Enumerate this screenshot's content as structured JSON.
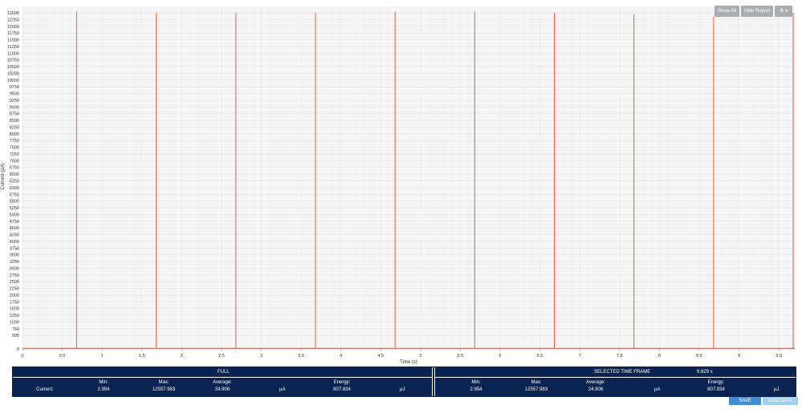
{
  "toolbar": {
    "show_all": "Show All",
    "hide_report": "Hide Report",
    "settings_icon": "gear-icon",
    "dropdown_icon": "caret-down-icon"
  },
  "chart_data": {
    "type": "line",
    "xlabel": "Time (s)",
    "ylabel": "Current (µA)",
    "xlim": [
      0,
      9.7
    ],
    "ylim": [
      0,
      12500
    ],
    "x_ticks": [
      0,
      0.5,
      1,
      1.5,
      2,
      2.5,
      3,
      3.5,
      4,
      4.5,
      5,
      5.5,
      6,
      6.5,
      7,
      7.5,
      8,
      8.5,
      9,
      9.5
    ],
    "y_ticks": [
      0,
      500,
      750,
      1000,
      1250,
      1500,
      1750,
      2000,
      2250,
      2500,
      2750,
      3000,
      3250,
      3500,
      3750,
      4000,
      4250,
      4500,
      4750,
      5000,
      5250,
      5500,
      5750,
      6000,
      6250,
      6500,
      6750,
      7000,
      7250,
      7500,
      7750,
      8000,
      8250,
      8500,
      8750,
      9000,
      9250,
      9500,
      9750,
      10000,
      10250,
      10500,
      10750,
      11000,
      11250,
      11500,
      11750,
      12000,
      12250,
      12500
    ],
    "grid": true,
    "line_color": "#e8603a",
    "baseline": 25,
    "spikes": [
      {
        "x": 0.68,
        "y": 12550
      },
      {
        "x": 1.68,
        "y": 12500
      },
      {
        "x": 2.68,
        "y": 12500
      },
      {
        "x": 3.68,
        "y": 12500
      },
      {
        "x": 4.68,
        "y": 12550
      },
      {
        "x": 5.68,
        "y": 12550
      },
      {
        "x": 6.68,
        "y": 12500
      },
      {
        "x": 7.68,
        "y": 12450
      },
      {
        "x": 8.68,
        "y": 12350
      },
      {
        "x": 9.68,
        "y": 12500
      }
    ]
  },
  "report": {
    "full": {
      "title": "FULL",
      "row_label": "Current:",
      "min_label": "Min:",
      "min": "2.954",
      "max_label": "Max:",
      "max": "12557.983",
      "avg_label": "Average:",
      "avg": "24.906",
      "avg_unit": "µA",
      "energy_label": "Energy:",
      "energy": "807.834",
      "energy_unit": "µJ"
    },
    "selected": {
      "title": "SELECTED TIME FRAME",
      "duration": "9.829 s",
      "min_label": "Min:",
      "min": "2.954",
      "max_label": "Max:",
      "max": "12557.983",
      "avg_label": "Average:",
      "avg": "24.906",
      "avg_unit": "µA",
      "energy_label": "Energy:",
      "energy": "807.834",
      "energy_unit": "µJ"
    }
  },
  "buttons": {
    "save_graph": "SAVE GRAPH",
    "add_data_log": "ADD DATA LOG"
  }
}
